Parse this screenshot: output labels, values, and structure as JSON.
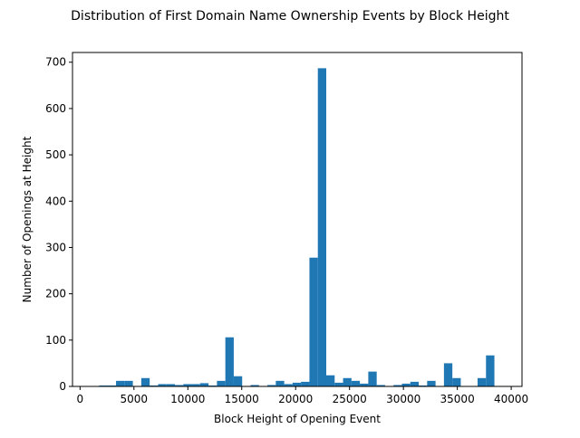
{
  "chart_data": {
    "type": "bar",
    "title": "Distribution of First Domain Name Ownership Events by Block Height",
    "xlabel": "Block Height of Opening Event",
    "ylabel": "Number of Openings at Height",
    "xlim": [
      -700,
      41000
    ],
    "ylim": [
      0,
      721
    ],
    "xticks": [
      0,
      5000,
      10000,
      15000,
      20000,
      25000,
      30000,
      35000,
      40000
    ],
    "yticks": [
      0,
      100,
      200,
      300,
      400,
      500,
      600,
      700
    ],
    "grid": false,
    "bar_color": "#1f77b4",
    "bins": {
      "start": 1000,
      "width": 780,
      "values": [
        1,
        2,
        2,
        12,
        12,
        1,
        18,
        2,
        5,
        5,
        3,
        5,
        5,
        7,
        2,
        12,
        106,
        22,
        1,
        3,
        1,
        3,
        12,
        5,
        8,
        10,
        278,
        687,
        24,
        8,
        18,
        12,
        6,
        32,
        3,
        1,
        3,
        6,
        10,
        2,
        12,
        1,
        50,
        18,
        0,
        0,
        18,
        67,
        1,
        1
      ]
    }
  }
}
